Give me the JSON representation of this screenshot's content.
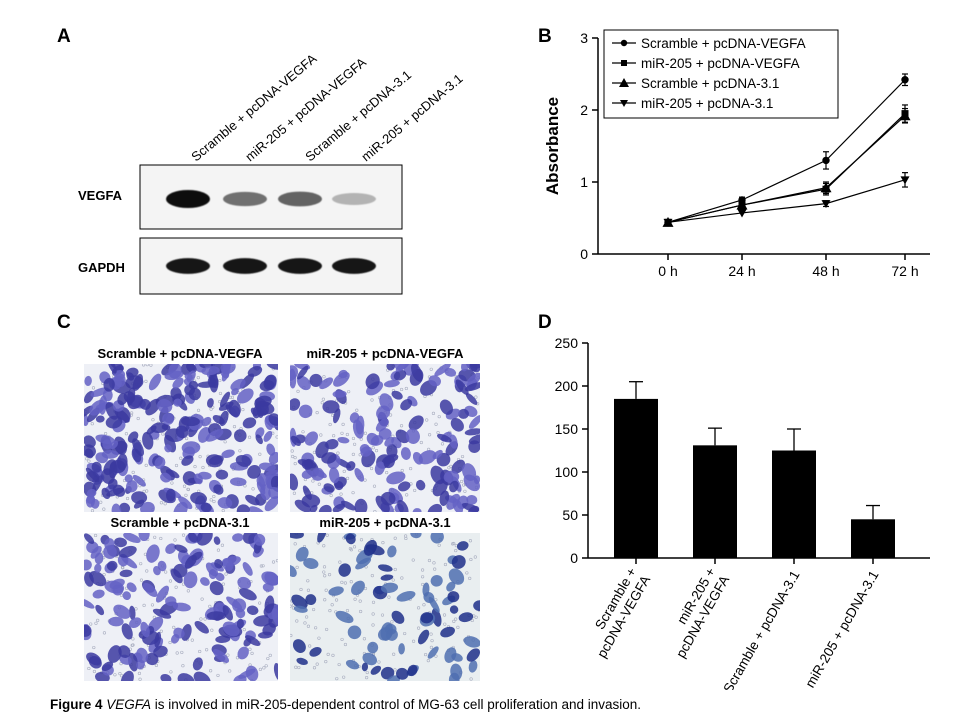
{
  "panels": {
    "A": {
      "letter": "A",
      "lanes": [
        "Scramble + pcDNA-VEGFA",
        "miR-205 + pcDNA-VEGFA",
        "Scramble + pcDNA-3.1",
        "miR-205 + pcDNA-3.1"
      ],
      "rows": [
        {
          "label": "VEGFA",
          "intensity": [
            1.0,
            0.55,
            0.6,
            0.25
          ]
        },
        {
          "label": "GAPDH",
          "intensity": [
            0.95,
            0.95,
            0.95,
            0.95
          ]
        }
      ]
    },
    "B": {
      "letter": "B"
    },
    "C": {
      "letter": "C",
      "images": [
        {
          "label": "Scramble + pcDNA-VEGFA",
          "density": 0.95
        },
        {
          "label": "miR-205 + pcDNA-VEGFA",
          "density": 0.55
        },
        {
          "label": "Scramble + pcDNA-3.1",
          "density": 0.55
        },
        {
          "label": "miR-205 + pcDNA-3.1",
          "density": 0.2
        }
      ]
    },
    "D": {
      "letter": "D"
    }
  },
  "chart_data": [
    {
      "panel": "B",
      "type": "line",
      "ylabel": "Absorbance",
      "xlabel": "",
      "categories": [
        "0 h",
        "24 h",
        "48 h",
        "72 h"
      ],
      "ylim": [
        0,
        3
      ],
      "yticks": [
        "0",
        "1",
        "2",
        "3"
      ],
      "legend_position": "top-left",
      "series": [
        {
          "name": "Scramble + pcDNA-VEGFA",
          "marker": "circle",
          "values": [
            0.44,
            0.75,
            1.3,
            2.42
          ],
          "errors": [
            0.03,
            0.04,
            0.12,
            0.08
          ]
        },
        {
          "name": "miR-205 + pcDNA-VEGFA",
          "marker": "square",
          "values": [
            0.44,
            0.68,
            0.9,
            1.95
          ],
          "errors": [
            0.03,
            0.04,
            0.08,
            0.12
          ]
        },
        {
          "name": "Scramble + pcDNA-3.1",
          "marker": "triangle-up",
          "values": [
            0.44,
            0.68,
            0.92,
            1.92
          ],
          "errors": [
            0.03,
            0.04,
            0.08,
            0.1
          ]
        },
        {
          "name": "miR-205 + pcDNA-3.1",
          "marker": "triangle-down",
          "values": [
            0.44,
            0.57,
            0.7,
            1.03
          ],
          "errors": [
            0.03,
            0.03,
            0.04,
            0.1
          ]
        }
      ]
    },
    {
      "panel": "D",
      "type": "bar",
      "categories": [
        "Scramble +\npcDNA-VEGFA",
        "miR-205 +\npcDNA-VEGFA",
        "Scramble + pcDNA-3.1",
        "miR-205 + pcDNA-3.1"
      ],
      "values": [
        185,
        131,
        125,
        45
      ],
      "errors": [
        20,
        20,
        25,
        16
      ],
      "ylim": [
        0,
        250
      ],
      "yticks": [
        "0",
        "50",
        "100",
        "150",
        "200",
        "250"
      ],
      "xlabel": "",
      "ylabel": ""
    }
  ],
  "caption": {
    "prefix": "Figure 4 ",
    "italic": "VEGFA",
    "rest": " is involved in miR-205-dependent control of MG-63 cell proliferation and invasion."
  },
  "colors": {
    "stain": "#3b3aa0",
    "stain_light": "#8a88d8",
    "blot": "#111111"
  }
}
